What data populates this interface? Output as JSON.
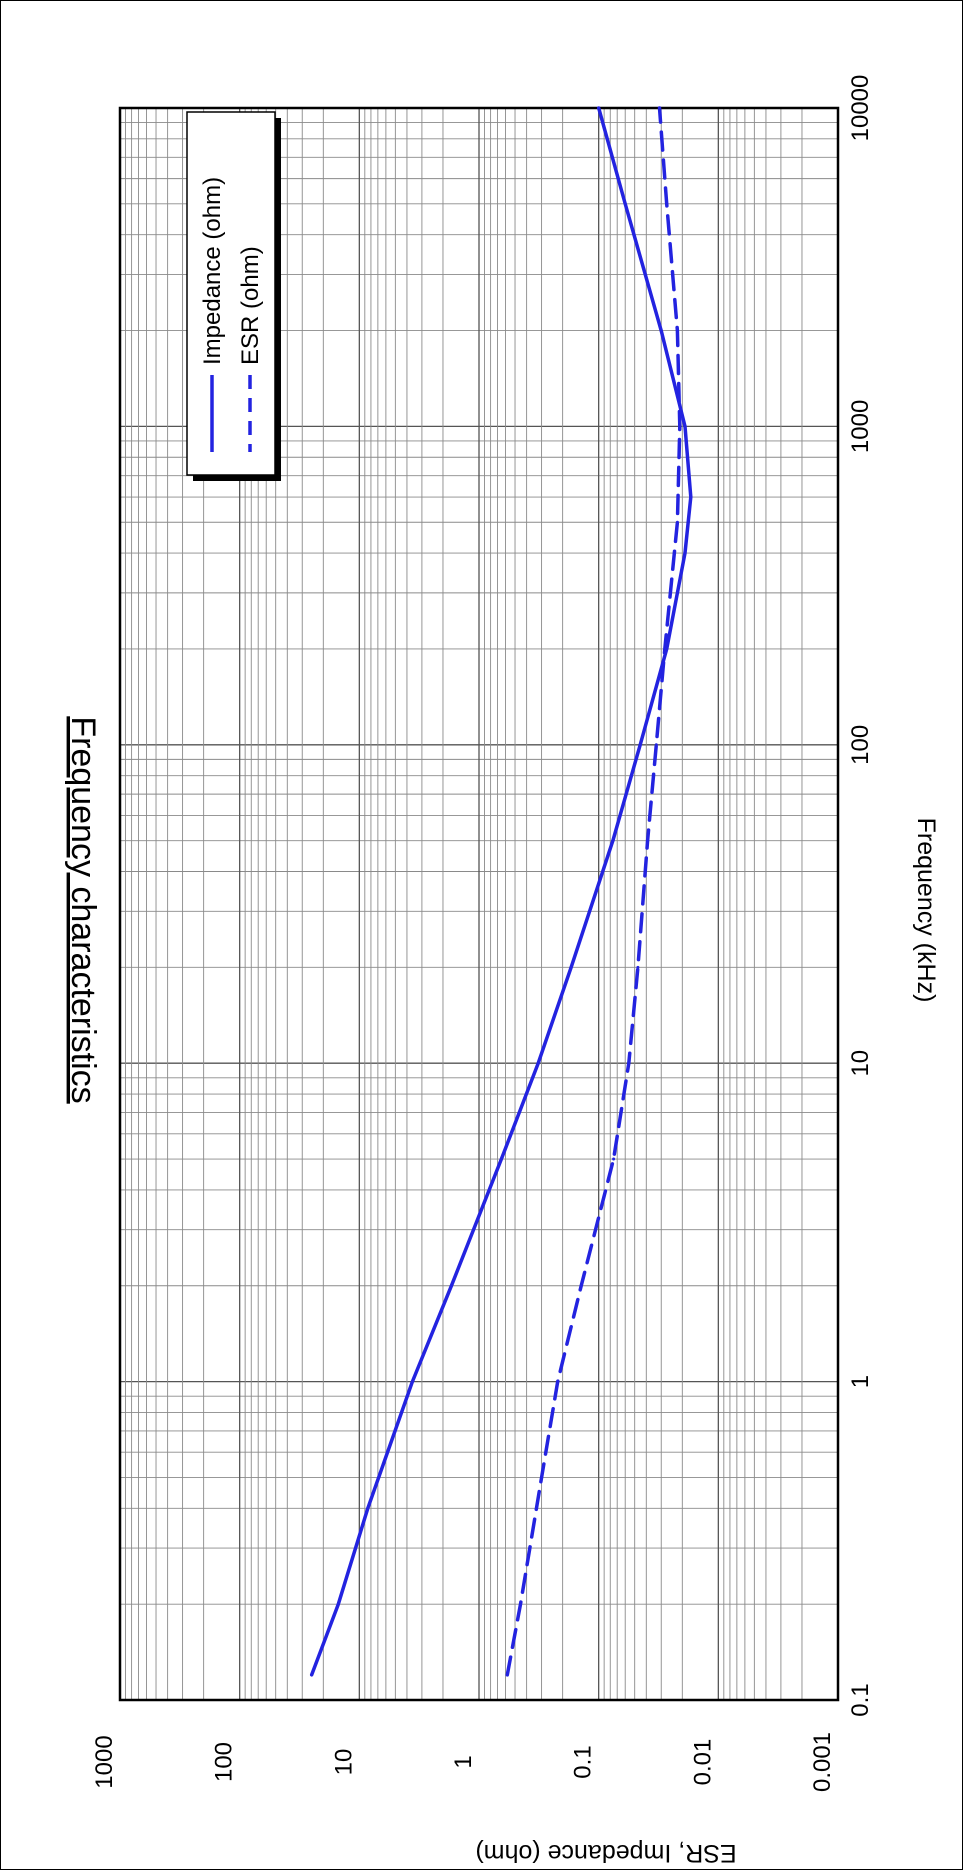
{
  "chart_data": {
    "type": "line",
    "orientation": "rotated-90-clockwise",
    "title": "Frequency characteristics",
    "xlabel": "Frequency (kHz)",
    "ylabel": "ESR, Impedance (ohm)",
    "x_scale": "log",
    "y_scale": "log",
    "xlim": [
      0.1,
      10000
    ],
    "ylim": [
      0.001,
      1000
    ],
    "x_ticks": [
      "0.1",
      "1",
      "10",
      "100",
      "1000",
      "10000"
    ],
    "y_ticks": [
      "0.001",
      "0.01",
      "0.1",
      "1",
      "10",
      "100",
      "1000"
    ],
    "grid": true,
    "legend_position": "top-right",
    "series": [
      {
        "name": "Impedance (ohm)",
        "style": "solid",
        "color": "#2323e0",
        "x": [
          0.12,
          0.2,
          0.4,
          1,
          2,
          5,
          10,
          20,
          50,
          100,
          200,
          400,
          600,
          1000,
          2000,
          5000,
          10000
        ],
        "y": [
          25,
          15,
          8.5,
          3.6,
          1.7,
          0.65,
          0.32,
          0.17,
          0.076,
          0.045,
          0.027,
          0.019,
          0.017,
          0.019,
          0.03,
          0.06,
          0.1
        ]
      },
      {
        "name": "ESR (ohm)",
        "style": "dashed",
        "color": "#2323e0",
        "x": [
          0.12,
          0.2,
          0.5,
          1,
          2,
          5,
          10,
          20,
          50,
          100,
          200,
          500,
          1000,
          2000,
          5000,
          10000
        ],
        "y": [
          0.58,
          0.45,
          0.3,
          0.22,
          0.14,
          0.075,
          0.056,
          0.047,
          0.039,
          0.033,
          0.028,
          0.022,
          0.021,
          0.022,
          0.027,
          0.031
        ]
      }
    ]
  }
}
